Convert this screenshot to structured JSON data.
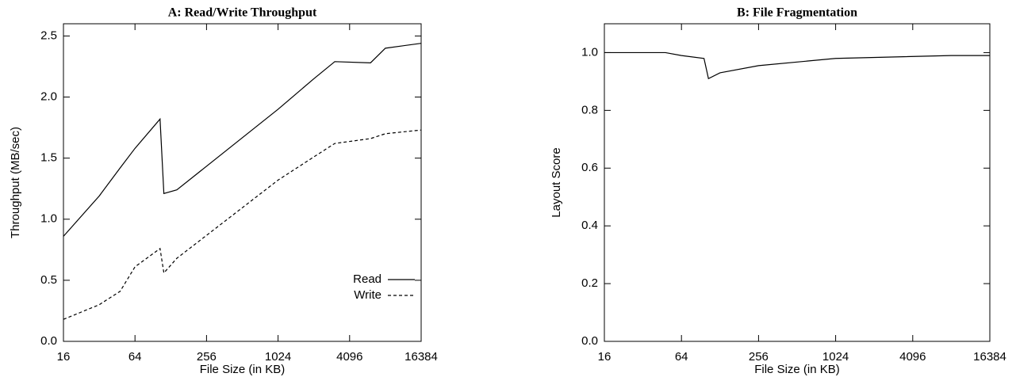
{
  "chart_data": [
    {
      "type": "line",
      "title": "A: Read/Write Throughput",
      "x_label": "File Size (in KB)",
      "y_label": "Throughput (MB/sec)",
      "x": [
        16,
        32,
        48,
        64,
        104,
        112,
        144,
        1024,
        2048,
        3072,
        6144,
        8192,
        16384
      ],
      "series": [
        {
          "name": "Read",
          "color": "#000000",
          "dash": "solid",
          "values": [
            0.86,
            1.19,
            1.42,
            1.58,
            1.82,
            1.21,
            1.24,
            1.9,
            2.15,
            2.29,
            2.28,
            2.4,
            2.44
          ]
        },
        {
          "name": "Write",
          "color": "#000000",
          "dash": "dashed",
          "values": [
            0.18,
            0.3,
            0.41,
            0.61,
            0.76,
            0.56,
            0.68,
            1.32,
            1.51,
            1.62,
            1.66,
            1.7,
            1.73
          ]
        }
      ],
      "x_scale": "log2",
      "xlim": [
        16,
        16384
      ],
      "xticks": [
        16,
        64,
        256,
        1024,
        4096,
        16384
      ],
      "ylim": [
        0,
        2.6
      ],
      "yticks": [
        {
          "value": 0,
          "label": "0.0"
        },
        0.5,
        {
          "value": 1,
          "label": "1.0"
        },
        1.5,
        {
          "value": 2,
          "label": "2.0"
        },
        2.5
      ],
      "legend": "bottom-right"
    },
    {
      "type": "line",
      "title": "B: File Fragmentation",
      "x_label": "File Size (in KB)",
      "y_label": "Layout Score",
      "x": [
        16,
        48,
        64,
        96,
        104,
        128,
        256,
        1024,
        8192,
        16384
      ],
      "series": [
        {
          "color": "#000000",
          "dash": "solid",
          "values": [
            1.0,
            1.0,
            0.99,
            0.98,
            0.91,
            0.93,
            0.955,
            0.98,
            0.99,
            0.99
          ]
        }
      ],
      "x_scale": "log2",
      "xlim": [
        16,
        16384
      ],
      "xticks": [
        16,
        64,
        256,
        1024,
        4096,
        16384
      ],
      "ylim": [
        0,
        1.1
      ],
      "yticks": [
        {
          "value": 0,
          "label": "0.0"
        },
        0.2,
        0.4,
        0.6,
        0.8,
        {
          "value": 1,
          "label": "1.0"
        }
      ]
    }
  ]
}
